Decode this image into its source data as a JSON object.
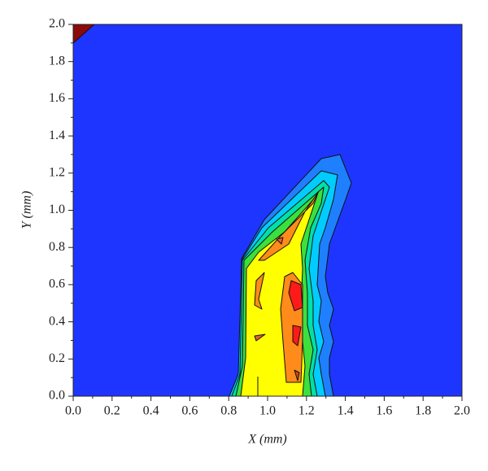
{
  "chart_data": {
    "type": "contour",
    "xlabel": "X (mm)",
    "ylabel": "Y (mm)",
    "xlim": [
      0,
      2
    ],
    "ylim": [
      0,
      2
    ],
    "xticks": [
      {
        "value": 0,
        "label": "0.0"
      },
      0.2,
      0.4,
      0.6,
      0.8,
      {
        "value": 1,
        "label": "1.0"
      },
      1.2,
      1.4,
      1.6,
      1.8,
      {
        "value": 2,
        "label": "2.0"
      }
    ],
    "yticks": [
      {
        "value": 0,
        "label": "0.0"
      },
      0.2,
      0.4,
      0.6,
      0.8,
      {
        "value": 1,
        "label": "1.0"
      },
      1.2,
      1.4,
      1.6,
      1.8,
      {
        "value": 2,
        "label": "2.0"
      }
    ],
    "minor_ticks": true
  }
}
